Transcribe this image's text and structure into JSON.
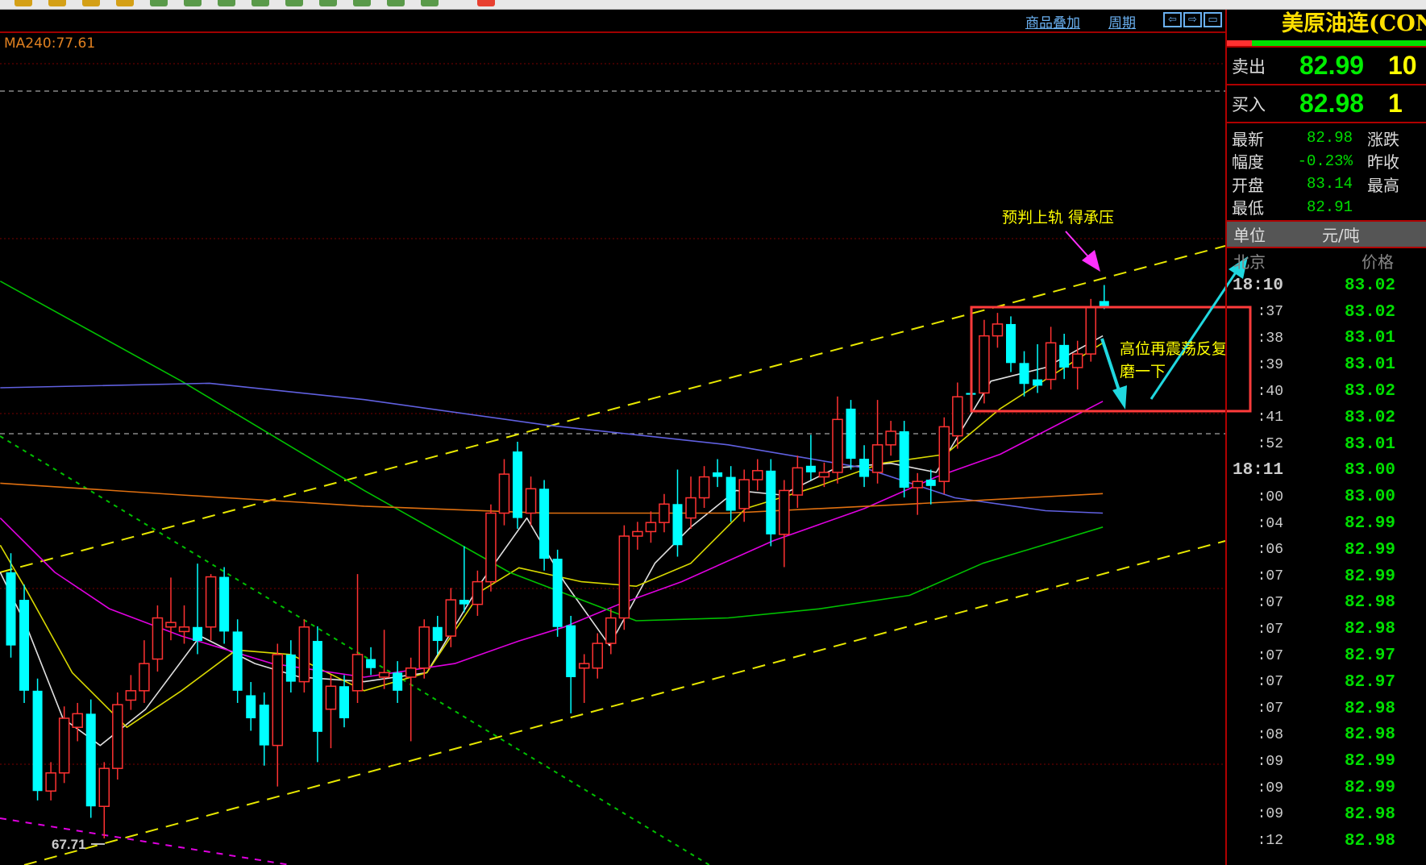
{
  "toolbar": {
    "squares": [
      "#d4a017",
      "#d4a017",
      "#d4a017",
      "#d4a017",
      "#5a9a4a",
      "#5a9a4a",
      "#5a9a4a",
      "#5a9a4a",
      "#5a9a4a",
      "#5a9a4a",
      "#5a9a4a",
      "#5a9a4a",
      "#5a9a4a",
      "#e84030"
    ]
  },
  "header": {
    "overlay_label": "商品叠加",
    "period_label": "周期",
    "icons": [
      "arrow-left-icon",
      "arrow-right-icon",
      "panel-toggle-icon"
    ]
  },
  "ma_label": "MA240:77.61",
  "annotations": {
    "top": "预判上轨 得承压",
    "box_line1": "高位再震荡反复",
    "box_line2": "磨一下",
    "low_marker": "67.71"
  },
  "panel": {
    "title": "美原油连(CON",
    "sell_label": "卖出",
    "sell_price": "82.99",
    "sell_vol": "10",
    "buy_label": "买入",
    "buy_price": "82.98",
    "buy_vol": "1",
    "stats": [
      {
        "label": "最新",
        "value": "82.98",
        "label2": "涨跌"
      },
      {
        "label": "幅度",
        "value": "-0.23%",
        "label2": "昨收"
      },
      {
        "label": "开盘",
        "value": "83.14",
        "label2": "最高"
      },
      {
        "label": "最低",
        "value": "82.91",
        "label2": ""
      }
    ],
    "unit_label": "单位",
    "unit_value": "元/吨",
    "tick_header_time": "北京",
    "tick_header_price": "价格",
    "ticks": [
      {
        "t": "18:10",
        "p": "83.02"
      },
      {
        "t": ":37",
        "p": "83.02"
      },
      {
        "t": ":38",
        "p": "83.01"
      },
      {
        "t": ":39",
        "p": "83.01"
      },
      {
        "t": ":40",
        "p": "83.02"
      },
      {
        "t": ":41",
        "p": "83.02"
      },
      {
        "t": ":52",
        "p": "83.01"
      },
      {
        "t": "18:11",
        "p": "83.00"
      },
      {
        "t": ":00",
        "p": "83.00"
      },
      {
        "t": ":04",
        "p": "82.99"
      },
      {
        "t": ":06",
        "p": "82.99"
      },
      {
        "t": ":07",
        "p": "82.99"
      },
      {
        "t": ":07",
        "p": "82.98"
      },
      {
        "t": ":07",
        "p": "82.98"
      },
      {
        "t": ":07",
        "p": "82.97"
      },
      {
        "t": ":07",
        "p": "82.97"
      },
      {
        "t": ":07",
        "p": "82.98"
      },
      {
        "t": ":08",
        "p": "82.98"
      },
      {
        "t": ":09",
        "p": "82.99"
      },
      {
        "t": ":09",
        "p": "82.99"
      },
      {
        "t": ":09",
        "p": "82.98"
      },
      {
        "t": ":12",
        "p": "82.98"
      }
    ]
  },
  "colors": {
    "up": "#ff3232",
    "down": "#00ffff",
    "ma5": "#e0e0e0",
    "ma10": "#d8d800",
    "ma20": "#e000e0",
    "ma60": "#00c000",
    "ma120": "#6060e0",
    "ma240": "#e07010",
    "channel": "#e8e800"
  },
  "chart_data": {
    "type": "candlestick",
    "ohlc": [
      [
        75.35,
        75.9,
        72.9,
        73.25
      ],
      [
        74.56,
        75.0,
        71.6,
        71.95
      ],
      [
        71.95,
        72.3,
        68.8,
        69.07
      ],
      [
        69.07,
        69.9,
        68.8,
        69.59
      ],
      [
        69.59,
        71.5,
        69.3,
        71.16
      ],
      [
        70.9,
        71.6,
        70.5,
        71.29
      ],
      [
        71.29,
        71.7,
        68.3,
        68.63
      ],
      [
        68.63,
        69.9,
        67.71,
        69.72
      ],
      [
        69.72,
        71.9,
        69.4,
        71.55
      ],
      [
        71.68,
        72.4,
        71.4,
        71.95
      ],
      [
        71.95,
        73.4,
        71.6,
        72.73
      ],
      [
        72.86,
        74.4,
        72.5,
        74.04
      ],
      [
        73.78,
        75.2,
        73.4,
        73.91
      ],
      [
        73.65,
        74.4,
        73.3,
        73.78
      ],
      [
        73.78,
        75.6,
        73.0,
        73.38
      ],
      [
        73.78,
        75.3,
        73.4,
        75.22
      ],
      [
        75.22,
        75.5,
        73.3,
        73.65
      ],
      [
        73.65,
        74.0,
        71.6,
        71.95
      ],
      [
        71.82,
        72.2,
        70.8,
        71.16
      ],
      [
        71.55,
        71.9,
        69.8,
        70.38
      ],
      [
        70.38,
        73.3,
        69.2,
        72.99
      ],
      [
        72.99,
        73.4,
        71.9,
        72.21
      ],
      [
        72.21,
        74.0,
        71.9,
        73.78
      ],
      [
        73.38,
        73.8,
        69.9,
        70.77
      ],
      [
        71.42,
        72.4,
        70.3,
        72.08
      ],
      [
        72.08,
        72.4,
        70.9,
        71.16
      ],
      [
        71.95,
        75.3,
        71.6,
        72.99
      ],
      [
        72.86,
        73.2,
        72.4,
        72.6
      ],
      [
        72.34,
        73.7,
        72.0,
        72.47
      ],
      [
        72.47,
        72.8,
        71.6,
        71.95
      ],
      [
        72.34,
        72.9,
        70.5,
        72.6
      ],
      [
        72.6,
        74.0,
        72.3,
        73.78
      ],
      [
        73.78,
        74.1,
        73.0,
        73.38
      ],
      [
        73.52,
        74.9,
        73.2,
        74.56
      ],
      [
        74.56,
        76.1,
        74.2,
        74.43
      ],
      [
        74.43,
        75.4,
        74.1,
        75.08
      ],
      [
        75.08,
        77.3,
        74.8,
        77.05
      ],
      [
        77.05,
        78.6,
        76.7,
        78.17
      ],
      [
        78.82,
        79.1,
        76.6,
        76.91
      ],
      [
        77.05,
        78.1,
        76.7,
        77.75
      ],
      [
        77.75,
        78.0,
        75.4,
        75.74
      ],
      [
        75.74,
        76.0,
        73.5,
        73.78
      ],
      [
        73.83,
        74.1,
        71.3,
        72.34
      ],
      [
        72.6,
        73.0,
        71.6,
        72.73
      ],
      [
        72.6,
        73.6,
        72.3,
        73.31
      ],
      [
        73.31,
        74.3,
        73.0,
        74.04
      ],
      [
        74.04,
        76.7,
        73.7,
        76.39
      ],
      [
        76.39,
        76.8,
        76.0,
        76.52
      ],
      [
        76.52,
        77.1,
        76.2,
        76.78
      ],
      [
        76.78,
        77.6,
        76.5,
        77.31
      ],
      [
        77.31,
        78.3,
        75.8,
        76.13
      ],
      [
        76.91,
        78.1,
        76.6,
        77.49
      ],
      [
        77.49,
        78.4,
        77.2,
        78.09
      ],
      [
        78.22,
        78.6,
        77.8,
        78.09
      ],
      [
        78.09,
        78.4,
        76.8,
        77.12
      ],
      [
        77.18,
        78.3,
        76.8,
        78.01
      ],
      [
        78.01,
        78.6,
        77.7,
        78.27
      ],
      [
        78.27,
        78.6,
        76.1,
        76.44
      ],
      [
        76.44,
        78.0,
        75.5,
        77.7
      ],
      [
        77.57,
        78.7,
        77.2,
        78.35
      ],
      [
        78.41,
        79.3,
        78.0,
        78.22
      ],
      [
        78.09,
        78.5,
        77.8,
        78.22
      ],
      [
        78.22,
        80.4,
        77.9,
        79.74
      ],
      [
        80.05,
        80.3,
        78.3,
        78.61
      ],
      [
        78.61,
        79.0,
        77.8,
        78.09
      ],
      [
        78.22,
        80.3,
        77.9,
        79.01
      ],
      [
        79.01,
        79.7,
        78.7,
        79.4
      ],
      [
        79.4,
        79.7,
        77.5,
        77.78
      ],
      [
        77.78,
        78.2,
        77.0,
        77.96
      ],
      [
        78.01,
        78.3,
        77.3,
        77.83
      ],
      [
        77.96,
        79.8,
        77.6,
        79.53
      ],
      [
        79.27,
        80.8,
        78.9,
        80.39
      ],
      [
        80.5,
        80.8,
        80.1,
        80.45
      ],
      [
        80.5,
        82.6,
        80.2,
        82.14
      ],
      [
        82.14,
        82.8,
        81.8,
        82.48
      ],
      [
        82.48,
        82.7,
        81.1,
        81.36
      ],
      [
        81.36,
        81.7,
        80.4,
        80.76
      ],
      [
        80.89,
        81.9,
        80.5,
        80.71
      ],
      [
        80.89,
        82.4,
        80.6,
        81.94
      ],
      [
        81.88,
        82.2,
        80.9,
        81.23
      ],
      [
        81.23,
        82.0,
        80.6,
        81.62
      ],
      [
        81.62,
        83.2,
        81.4,
        82.98
      ],
      [
        83.14,
        83.6,
        82.91,
        82.98
      ]
    ],
    "moving_averages": [
      {
        "key": "ma5",
        "points": [
          [
            -0.8,
            75.35
          ],
          [
            1.2,
            73.78
          ],
          [
            3.9,
            71.16
          ],
          [
            6.7,
            70.38
          ],
          [
            10.1,
            71.42
          ],
          [
            14.2,
            73.52
          ],
          [
            18.3,
            72.73
          ],
          [
            21.7,
            72.34
          ],
          [
            26.5,
            72.21
          ],
          [
            31.2,
            72.47
          ],
          [
            35.3,
            75.08
          ],
          [
            38.7,
            76.91
          ],
          [
            41.5,
            75.08
          ],
          [
            44.9,
            73.25
          ],
          [
            48.3,
            75.61
          ],
          [
            51.0,
            76.65
          ],
          [
            54.4,
            77.7
          ],
          [
            57.8,
            77.57
          ],
          [
            61.9,
            78.35
          ],
          [
            66.0,
            78.48
          ],
          [
            69.4,
            78.22
          ],
          [
            73.5,
            80.84
          ],
          [
            77.6,
            81.23
          ],
          [
            81.9,
            82.14
          ]
        ]
      },
      {
        "key": "ma10",
        "points": [
          [
            -0.8,
            76.13
          ],
          [
            1.2,
            74.82
          ],
          [
            4.6,
            72.47
          ],
          [
            8.7,
            70.9
          ],
          [
            12.8,
            71.95
          ],
          [
            16.9,
            73.12
          ],
          [
            21.0,
            72.99
          ],
          [
            26.5,
            71.95
          ],
          [
            31.2,
            72.47
          ],
          [
            35.3,
            74.82
          ],
          [
            38.1,
            75.48
          ],
          [
            42.8,
            75.08
          ],
          [
            46.9,
            74.95
          ],
          [
            51.0,
            75.61
          ],
          [
            55.1,
            77.18
          ],
          [
            60.6,
            77.83
          ],
          [
            65.3,
            78.48
          ],
          [
            70.1,
            78.74
          ],
          [
            74.2,
            80.05
          ],
          [
            81.9,
            81.94
          ]
        ]
      },
      {
        "key": "ma20",
        "points": [
          [
            -0.8,
            76.91
          ],
          [
            3.3,
            75.35
          ],
          [
            7.4,
            74.3
          ],
          [
            12.8,
            73.52
          ],
          [
            19.6,
            72.73
          ],
          [
            26.5,
            72.34
          ],
          [
            33.3,
            72.73
          ],
          [
            38.1,
            73.38
          ],
          [
            41.5,
            73.78
          ],
          [
            45.6,
            74.43
          ],
          [
            50.3,
            75.08
          ],
          [
            57.2,
            76.26
          ],
          [
            64.0,
            77.18
          ],
          [
            69.4,
            78.09
          ],
          [
            74.2,
            78.74
          ],
          [
            81.9,
            80.26
          ]
        ]
      },
      {
        "key": "ma60",
        "points": [
          [
            -0.8,
            83.71
          ],
          [
            12.8,
            80.84
          ],
          [
            26.5,
            77.7
          ],
          [
            37.4,
            75.35
          ],
          [
            46.9,
            73.96
          ],
          [
            53.8,
            74.04
          ],
          [
            60.6,
            74.3
          ],
          [
            67.4,
            74.69
          ],
          [
            72.9,
            75.61
          ],
          [
            81.9,
            76.65
          ]
        ]
      },
      {
        "key": "ma120",
        "points": [
          [
            -0.8,
            80.65
          ],
          [
            14.9,
            80.78
          ],
          [
            26.5,
            80.31
          ],
          [
            40.1,
            79.58
          ],
          [
            53.8,
            79.01
          ],
          [
            64.0,
            78.35
          ],
          [
            70.8,
            77.49
          ],
          [
            77.6,
            77.12
          ],
          [
            81.9,
            77.05
          ]
        ]
      },
      {
        "key": "ma240",
        "points": [
          [
            -0.8,
            77.91
          ],
          [
            12.8,
            77.57
          ],
          [
            26.5,
            77.25
          ],
          [
            40.1,
            77.05
          ],
          [
            53.8,
            77.05
          ],
          [
            67.4,
            77.31
          ],
          [
            81.9,
            77.61
          ]
        ]
      }
    ]
  }
}
